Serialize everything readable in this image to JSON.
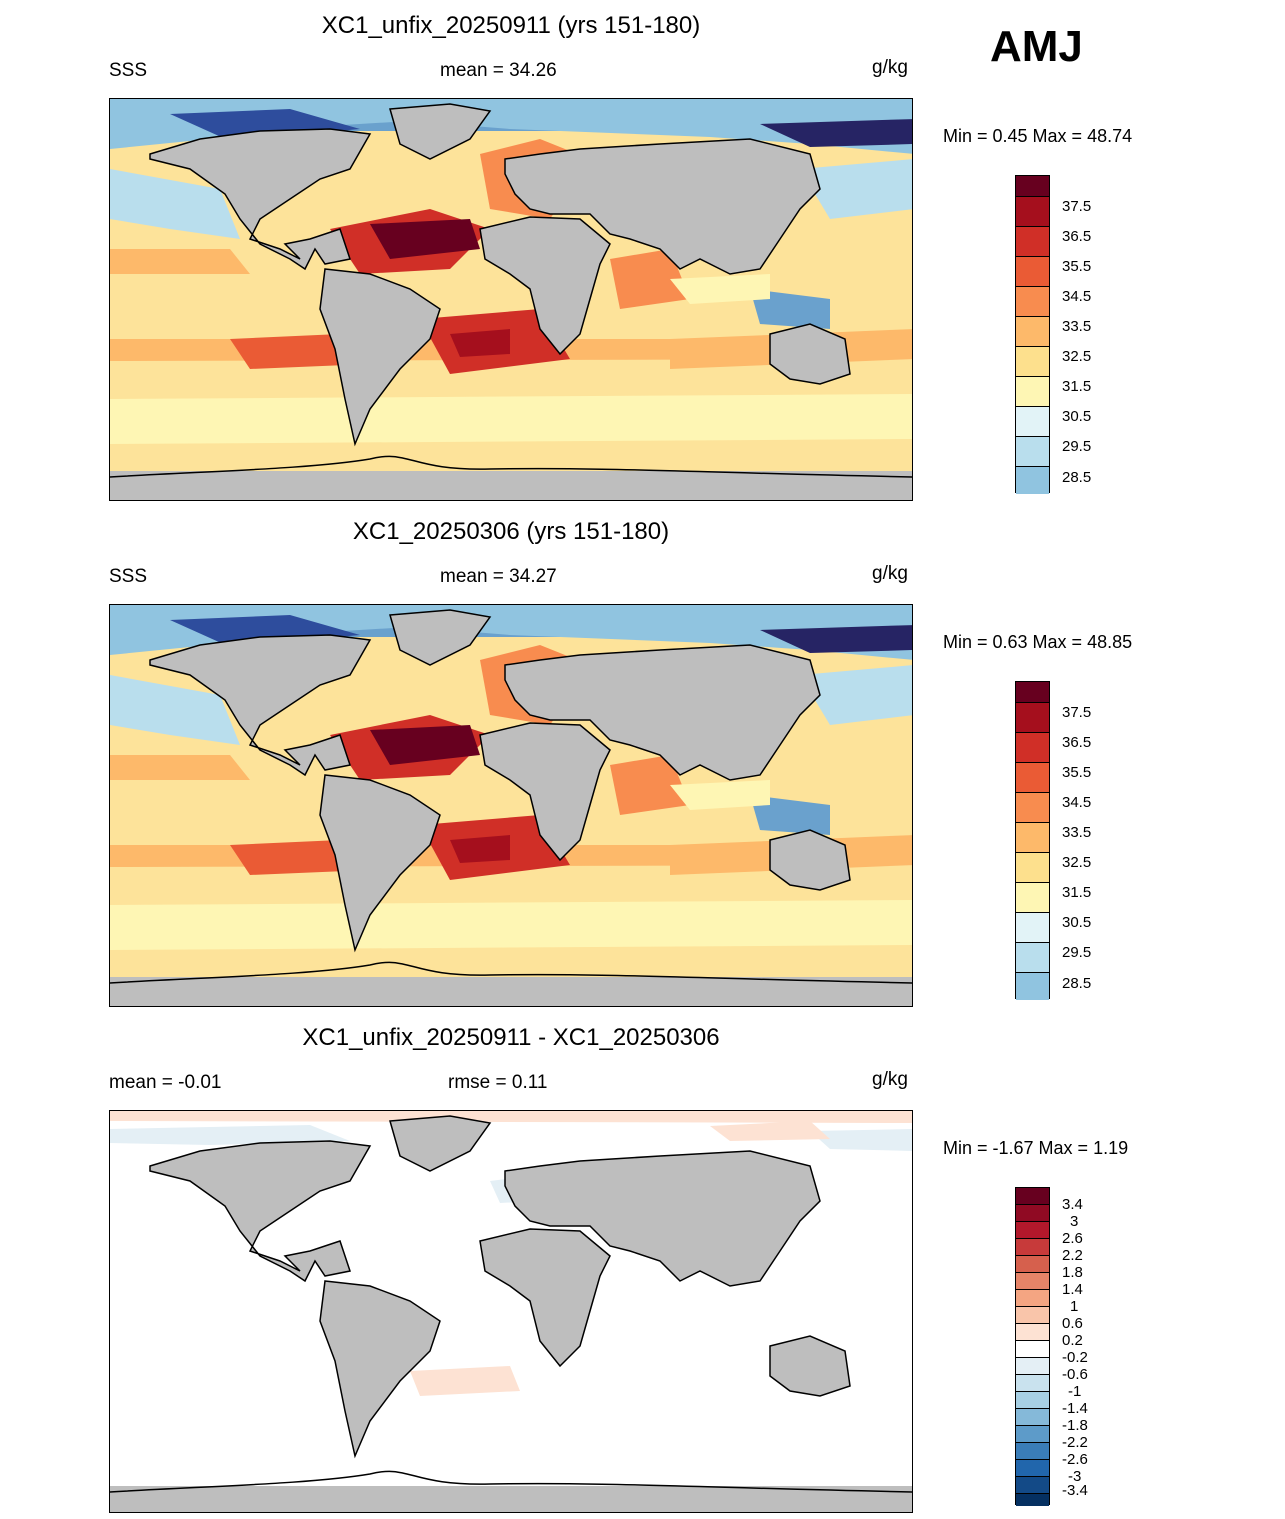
{
  "season": "AMJ",
  "panels": [
    {
      "title": "XC1_unfix_20250911 (yrs 151-180)",
      "left_label": "SSS",
      "center_label": "mean =  34.26",
      "units": "g/kg",
      "minmax": "Min =   0.45 Max =  48.74",
      "kind": "field"
    },
    {
      "title": "XC1_20250306 (yrs 151-180)",
      "left_label": "SSS",
      "center_label": "mean =  34.27",
      "units": "g/kg",
      "minmax": "Min =   0.63 Max =  48.85",
      "kind": "field"
    },
    {
      "title": "XC1_unfix_20250911 - XC1_20250306",
      "left_label": "mean =  -0.01",
      "center_label": "rmse =   0.11",
      "units": "g/kg",
      "minmax": "Min =  -1.67 Max =   1.19",
      "kind": "diff"
    }
  ],
  "field_colorbar": {
    "labels": [
      "37.5",
      "36.5",
      "35.5",
      "34.5",
      "33.5",
      "32.5",
      "31.5",
      "30.5",
      "29.5",
      "28.5"
    ],
    "colors": [
      "#67001f",
      "#a50f1d",
      "#d02f27",
      "#ea5b35",
      "#f88c4f",
      "#fdb96a",
      "#fde08d",
      "#fef6b4",
      "#e2f3f7",
      "#b9deed",
      "#90c4e0",
      "#6aa1cd",
      "#4676b5",
      "#2e4d9d",
      "#262464"
    ]
  },
  "diff_colorbar": {
    "labels": [
      "3.4",
      "3",
      "2.6",
      "2.2",
      "1.8",
      "1.4",
      "1",
      "0.6",
      "0.2",
      "-0.2",
      "-0.6",
      "-1",
      "-1.4",
      "-1.8",
      "-2.2",
      "-2.6",
      "-3",
      "-3.4"
    ],
    "colors": [
      "#67001f",
      "#900a23",
      "#b2182b",
      "#c73a3a",
      "#d6604d",
      "#e68468",
      "#f4a582",
      "#f9c5aa",
      "#fde2d3",
      "#ffffff",
      "#e4eff5",
      "#c9e2ee",
      "#a7d0e4",
      "#85b9d9",
      "#5d9bc9",
      "#3a7db8",
      "#2166ac",
      "#134a87",
      "#053061"
    ]
  }
}
